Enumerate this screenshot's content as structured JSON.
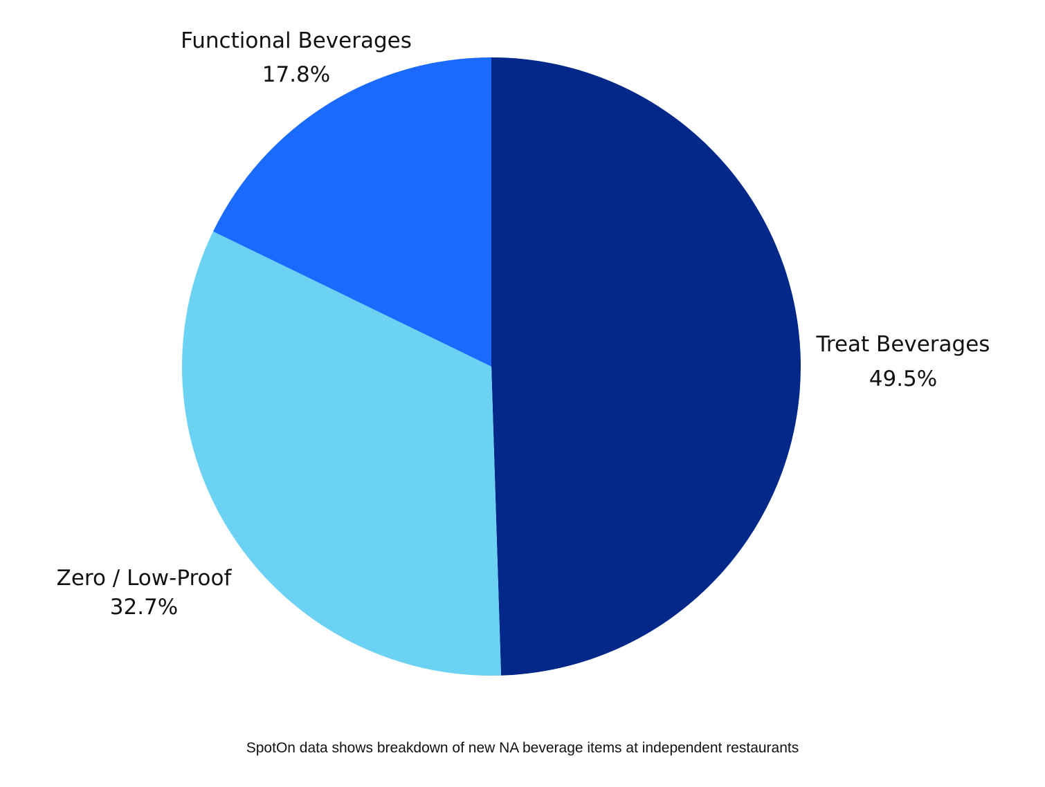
{
  "chart_data": {
    "type": "pie",
    "title": "",
    "start_angle_deg": 0,
    "direction": "clockwise",
    "slices": [
      {
        "label": "Treat Beverages",
        "value": 49.5,
        "value_label": "49.5%",
        "color": "#02288a",
        "label_position": "right"
      },
      {
        "label": "Zero / Low-Proof",
        "value": 32.7,
        "value_label": "32.7%",
        "color": "#6bd2f3",
        "label_position": "bottom-left"
      },
      {
        "label": "Functional Beverages",
        "value": 17.8,
        "value_label": "17.8%",
        "color": "#1a6aff",
        "label_position": "top-left"
      }
    ]
  },
  "caption": "SpotOn data shows breakdown of new NA beverage items at independent restaurants"
}
